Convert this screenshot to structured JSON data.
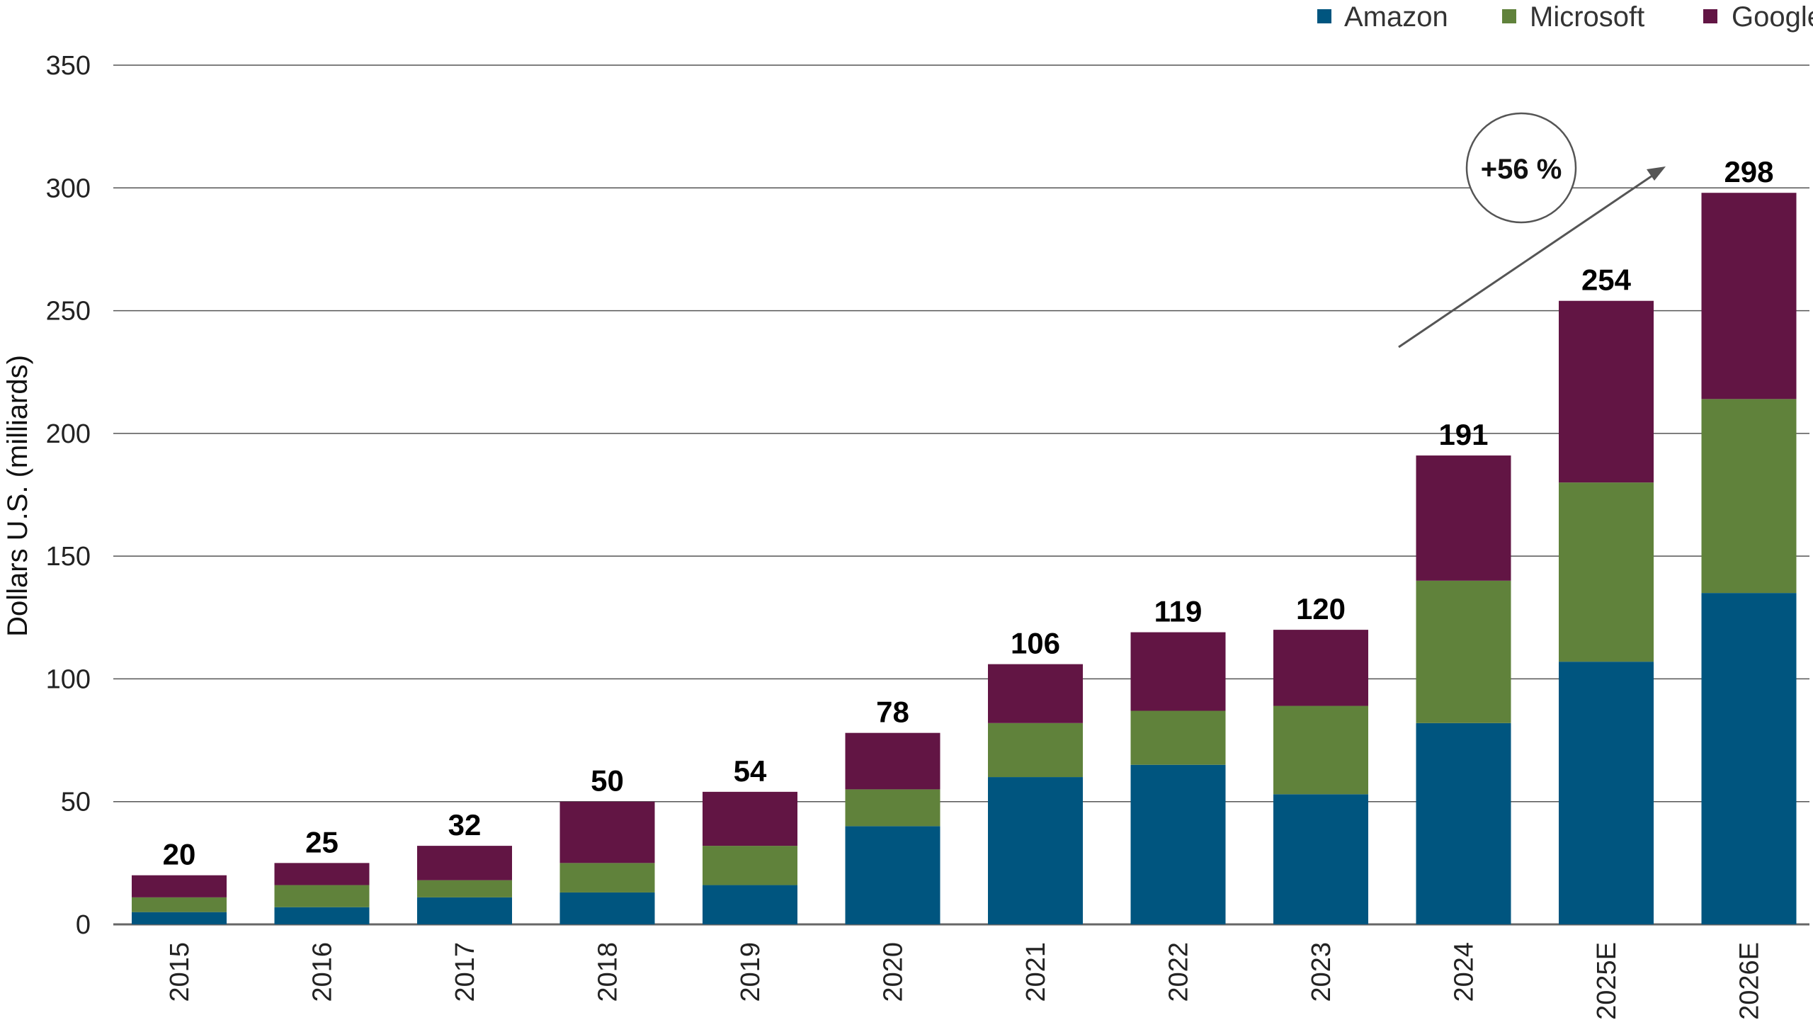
{
  "colors": {
    "Amazon": "#00557f",
    "Microsoft": "#60823b",
    "Google": "#621544",
    "grid": "#555555",
    "arrow": "#555555"
  },
  "chart_data": {
    "type": "bar",
    "stacked": true,
    "categories": [
      "2015",
      "2016",
      "2017",
      "2018",
      "2019",
      "2020",
      "2021",
      "2022",
      "2023",
      "2024",
      "2025E",
      "2026E"
    ],
    "series": [
      {
        "name": "Amazon",
        "values": [
          5,
          7,
          11,
          13,
          16,
          40,
          60,
          65,
          53,
          82,
          107,
          135
        ]
      },
      {
        "name": "Microsoft",
        "values": [
          6,
          9,
          7,
          12,
          16,
          15,
          22,
          22,
          36,
          58,
          73,
          79
        ]
      },
      {
        "name": "Google",
        "values": [
          9,
          9,
          14,
          25,
          22,
          23,
          24,
          32,
          31,
          51,
          74,
          84
        ]
      }
    ],
    "totals": [
      "20",
      "25",
      "32",
      "50",
      "54",
      "78",
      "106",
      "119",
      "120",
      "191",
      "254",
      "298"
    ],
    "ylabel": "Dollars U.S. (milliards)",
    "xlabel": "",
    "title": "",
    "ylim": [
      0,
      350
    ],
    "yticks": [
      "0",
      "50",
      "100",
      "150",
      "200",
      "250",
      "300",
      "350"
    ],
    "grid": true,
    "legend": "top-right",
    "annotation": {
      "text": "+56 %"
    }
  }
}
